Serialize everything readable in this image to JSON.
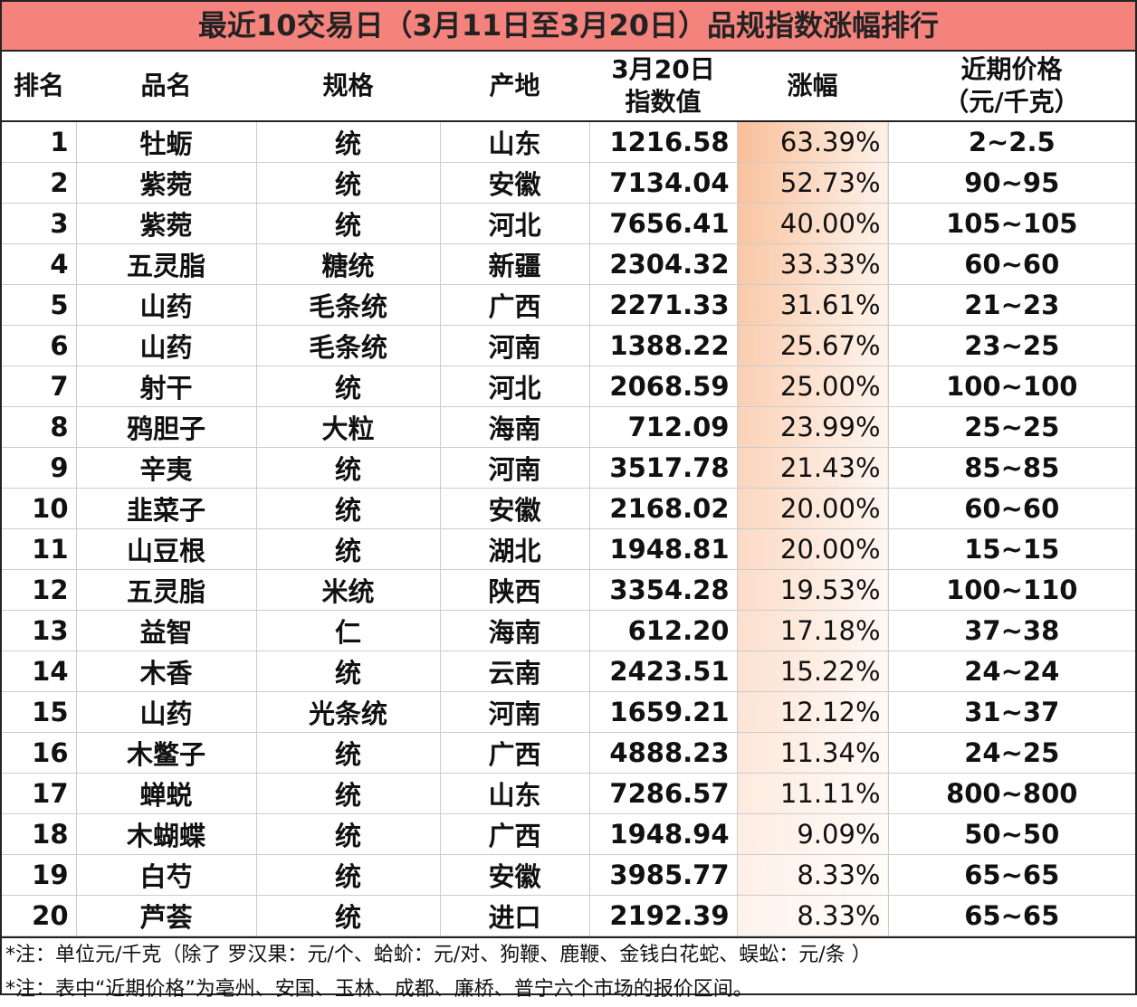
{
  "title": "最近10交易日（3月11日至3月20日）品规指数涨幅排行",
  "table": {
    "header": [
      "排名",
      "品名",
      "规格",
      "产地",
      "3月20日\n指数值",
      "涨幅",
      "近期价格\n（元/千克）"
    ],
    "rows": [
      [
        "1",
        "牡蛎",
        "统",
        "山东",
        "1216.58",
        "63.39%",
        "2~2.5"
      ],
      [
        "2",
        "紫菀",
        "统",
        "安徽",
        "7134.04",
        "52.73%",
        "90~95"
      ],
      [
        "3",
        "紫菀",
        "统",
        "河北",
        "7656.41",
        "40.00%",
        "105~105"
      ],
      [
        "4",
        "五灵脂",
        "糖统",
        "新疆",
        "2304.32",
        "33.33%",
        "60~60"
      ],
      [
        "5",
        "山药",
        "毛条统",
        "广西",
        "2271.33",
        "31.61%",
        "21~23"
      ],
      [
        "6",
        "山药",
        "毛条统",
        "河南",
        "1388.22",
        "25.67%",
        "23~25"
      ],
      [
        "7",
        "射干",
        "统",
        "河北",
        "2068.59",
        "25.00%",
        "100~100"
      ],
      [
        "8",
        "鸦胆子",
        "大粒",
        "海南",
        "712.09",
        "23.99%",
        "25~25"
      ],
      [
        "9",
        "辛夷",
        "统",
        "河南",
        "3517.78",
        "21.43%",
        "85~85"
      ],
      [
        "10",
        "韭菜子",
        "统",
        "安徽",
        "2168.02",
        "20.00%",
        "60~60"
      ],
      [
        "11",
        "山豆根",
        "统",
        "湖北",
        "1948.81",
        "20.00%",
        "15~15"
      ],
      [
        "12",
        "五灵脂",
        "米统",
        "陕西",
        "3354.28",
        "19.53%",
        "100~110"
      ],
      [
        "13",
        "益智",
        "仁",
        "海南",
        "612.20",
        "17.18%",
        "37~38"
      ],
      [
        "14",
        "木香",
        "统",
        "云南",
        "2423.51",
        "15.22%",
        "24~24"
      ],
      [
        "15",
        "山药",
        "光条统",
        "河南",
        "1659.21",
        "12.12%",
        "31~37"
      ],
      [
        "16",
        "木鳖子",
        "统",
        "广西",
        "4888.23",
        "11.34%",
        "24~25"
      ],
      [
        "17",
        "蝉蜕",
        "统",
        "山东",
        "7286.57",
        "11.11%",
        "800~800"
      ],
      [
        "18",
        "木蝴蝶",
        "统",
        "广西",
        "1948.94",
        "9.09%",
        "50~50"
      ],
      [
        "19",
        "白芍",
        "统",
        "安徽",
        "3985.77",
        "8.33%",
        "65~65"
      ],
      [
        "20",
        "芦荟",
        "统",
        "进口",
        "2192.39",
        "8.33%",
        "65~65"
      ]
    ]
  },
  "notes": [
    "*注：单位元/千克（除了 罗汉果：元/个、蛤蚧：元/对、狗鞭、鹿鞭、金钱白花蛇、蜈蚣：元/条 ）",
    "*注：表中“近期价格”为亳州、安国、玉林、成都、廉桥、普宁六个市场的报价区间。"
  ]
}
